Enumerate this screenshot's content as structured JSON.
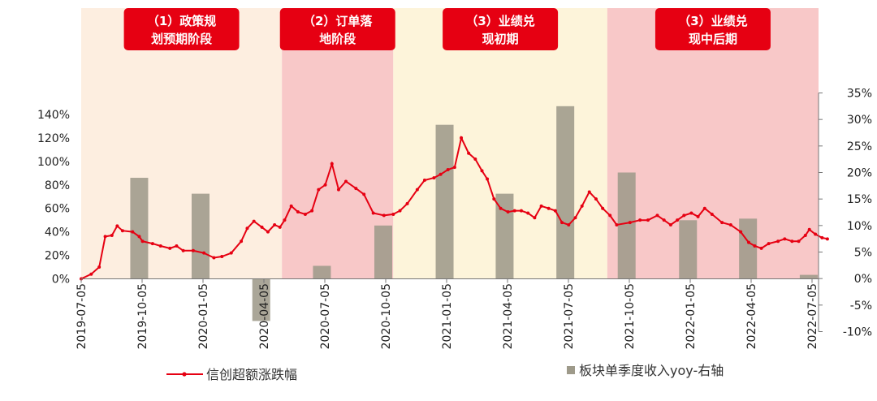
{
  "chart_data": {
    "type": "bar+line",
    "title": "",
    "x_ticks": [
      "2019-07-05",
      "2019-10-05",
      "2020-01-05",
      "2020-04-05",
      "2020-07-05",
      "2020-10-05",
      "2021-01-05",
      "2021-04-05",
      "2021-07-05",
      "2021-10-05",
      "2022-01-05",
      "2022-04-05",
      "2022-07-05"
    ],
    "y_left": {
      "ticks": [
        "0%",
        "20%",
        "40%",
        "60%",
        "80%",
        "100%",
        "120%",
        "140%"
      ],
      "min": 0,
      "max": 140,
      "unit": "%"
    },
    "y_right": {
      "ticks": [
        "-10%",
        "-5%",
        "0%",
        "5%",
        "10%",
        "15%",
        "20%",
        "25%",
        "30%",
        "35%"
      ],
      "min": -10,
      "max": 35,
      "unit": "%"
    },
    "phases": [
      {
        "line1": "（1）政策规",
        "line2": "划预期阶段",
        "start": "2019-07-05",
        "end": "2020-05-01",
        "color": "#fdeee0"
      },
      {
        "line1": "（2）订单落",
        "line2": "地阶段",
        "start": "2020-05-01",
        "end": "2020-10-15",
        "color": "#f8c8c8"
      },
      {
        "line1": "（3）业绩兑",
        "line2": "现初期",
        "start": "2020-10-15",
        "end": "2021-09-01",
        "color": "#fdf4da"
      },
      {
        "line1": "（3）业绩兑",
        "line2": "现中后期",
        "start": "2021-09-01",
        "end": "2022-08-15",
        "color": "#f8c8c8"
      }
    ],
    "series": [
      {
        "name": "信创超额涨跌幅",
        "type": "line",
        "axis": "left",
        "color": "#e60012",
        "points": [
          [
            "2019-07-05",
            0
          ],
          [
            "2019-07-20",
            4
          ],
          [
            "2019-08-01",
            10
          ],
          [
            "2019-08-10",
            36
          ],
          [
            "2019-08-20",
            37
          ],
          [
            "2019-08-28",
            45
          ],
          [
            "2019-09-05",
            41
          ],
          [
            "2019-09-20",
            40
          ],
          [
            "2019-09-30",
            36
          ],
          [
            "2019-10-05",
            32
          ],
          [
            "2019-10-20",
            30
          ],
          [
            "2019-11-01",
            28
          ],
          [
            "2019-11-15",
            26
          ],
          [
            "2019-11-25",
            28
          ],
          [
            "2019-12-05",
            24
          ],
          [
            "2019-12-20",
            24
          ],
          [
            "2020-01-05",
            22
          ],
          [
            "2020-01-20",
            18
          ],
          [
            "2020-02-01",
            19
          ],
          [
            "2020-02-15",
            22
          ],
          [
            "2020-03-01",
            32
          ],
          [
            "2020-03-10",
            43
          ],
          [
            "2020-03-20",
            49
          ],
          [
            "2020-04-01",
            44
          ],
          [
            "2020-04-10",
            40
          ],
          [
            "2020-04-20",
            46
          ],
          [
            "2020-04-28",
            44
          ],
          [
            "2020-05-05",
            50
          ],
          [
            "2020-05-15",
            62
          ],
          [
            "2020-05-25",
            57
          ],
          [
            "2020-06-05",
            55
          ],
          [
            "2020-06-15",
            58
          ],
          [
            "2020-06-25",
            76
          ],
          [
            "2020-07-05",
            80
          ],
          [
            "2020-07-15",
            98
          ],
          [
            "2020-07-25",
            76
          ],
          [
            "2020-08-05",
            83
          ],
          [
            "2020-08-20",
            77
          ],
          [
            "2020-09-01",
            72
          ],
          [
            "2020-09-15",
            56
          ],
          [
            "2020-10-01",
            54
          ],
          [
            "2020-10-15",
            55
          ],
          [
            "2020-10-25",
            58
          ],
          [
            "2020-11-05",
            64
          ],
          [
            "2020-11-20",
            76
          ],
          [
            "2020-12-01",
            84
          ],
          [
            "2020-12-15",
            86
          ],
          [
            "2020-12-25",
            89
          ],
          [
            "2021-01-05",
            93
          ],
          [
            "2021-01-15",
            95
          ],
          [
            "2021-01-25",
            120
          ],
          [
            "2021-02-05",
            107
          ],
          [
            "2021-02-15",
            102
          ],
          [
            "2021-02-25",
            92
          ],
          [
            "2021-03-05",
            85
          ],
          [
            "2021-03-15",
            68
          ],
          [
            "2021-03-25",
            60
          ],
          [
            "2021-04-05",
            57
          ],
          [
            "2021-04-15",
            58
          ],
          [
            "2021-04-25",
            58
          ],
          [
            "2021-05-05",
            56
          ],
          [
            "2021-05-15",
            52
          ],
          [
            "2021-05-25",
            62
          ],
          [
            "2021-06-05",
            60
          ],
          [
            "2021-06-15",
            58
          ],
          [
            "2021-06-25",
            48
          ],
          [
            "2021-07-05",
            46
          ],
          [
            "2021-07-15",
            52
          ],
          [
            "2021-07-25",
            62
          ],
          [
            "2021-08-05",
            74
          ],
          [
            "2021-08-15",
            68
          ],
          [
            "2021-08-25",
            60
          ],
          [
            "2021-09-05",
            54
          ],
          [
            "2021-09-15",
            46
          ],
          [
            "2021-10-05",
            48
          ],
          [
            "2021-10-20",
            50
          ],
          [
            "2021-11-01",
            50
          ],
          [
            "2021-11-15",
            54
          ],
          [
            "2021-11-25",
            50
          ],
          [
            "2021-12-05",
            46
          ],
          [
            "2021-12-15",
            50
          ],
          [
            "2021-12-25",
            54
          ],
          [
            "2022-01-05",
            56
          ],
          [
            "2022-01-15",
            53
          ],
          [
            "2022-01-25",
            60
          ],
          [
            "2022-02-05",
            55
          ],
          [
            "2022-02-20",
            48
          ],
          [
            "2022-03-05",
            46
          ],
          [
            "2022-03-20",
            40
          ],
          [
            "2022-04-01",
            31
          ],
          [
            "2022-04-10",
            28
          ],
          [
            "2022-04-20",
            26
          ],
          [
            "2022-05-01",
            30
          ],
          [
            "2022-05-15",
            32
          ],
          [
            "2022-05-25",
            34
          ],
          [
            "2022-06-05",
            32
          ],
          [
            "2022-06-15",
            32
          ],
          [
            "2022-06-25",
            37
          ],
          [
            "2022-07-01",
            42
          ],
          [
            "2022-07-10",
            38
          ],
          [
            "2022-07-20",
            35
          ],
          [
            "2022-07-28",
            34
          ]
        ]
      },
      {
        "name": "板块单季度收入yoy-右轴",
        "type": "bar",
        "axis": "right",
        "color": "#9e9a8a",
        "points": [
          [
            "2019-09-30",
            19
          ],
          [
            "2019-12-31",
            16
          ],
          [
            "2020-03-31",
            -8
          ],
          [
            "2020-06-30",
            2.4
          ],
          [
            "2020-09-30",
            10
          ],
          [
            "2020-12-31",
            29
          ],
          [
            "2021-03-31",
            16
          ],
          [
            "2021-06-30",
            32.5
          ],
          [
            "2021-09-30",
            20
          ],
          [
            "2021-12-31",
            11
          ],
          [
            "2022-03-31",
            11.3
          ],
          [
            "2022-06-30",
            0.7
          ]
        ]
      }
    ],
    "legend": {
      "line_label": "信创超额涨跌幅",
      "bar_label": "板块单季度收入yoy-右轴",
      "position": "bottom"
    },
    "grid": false
  }
}
